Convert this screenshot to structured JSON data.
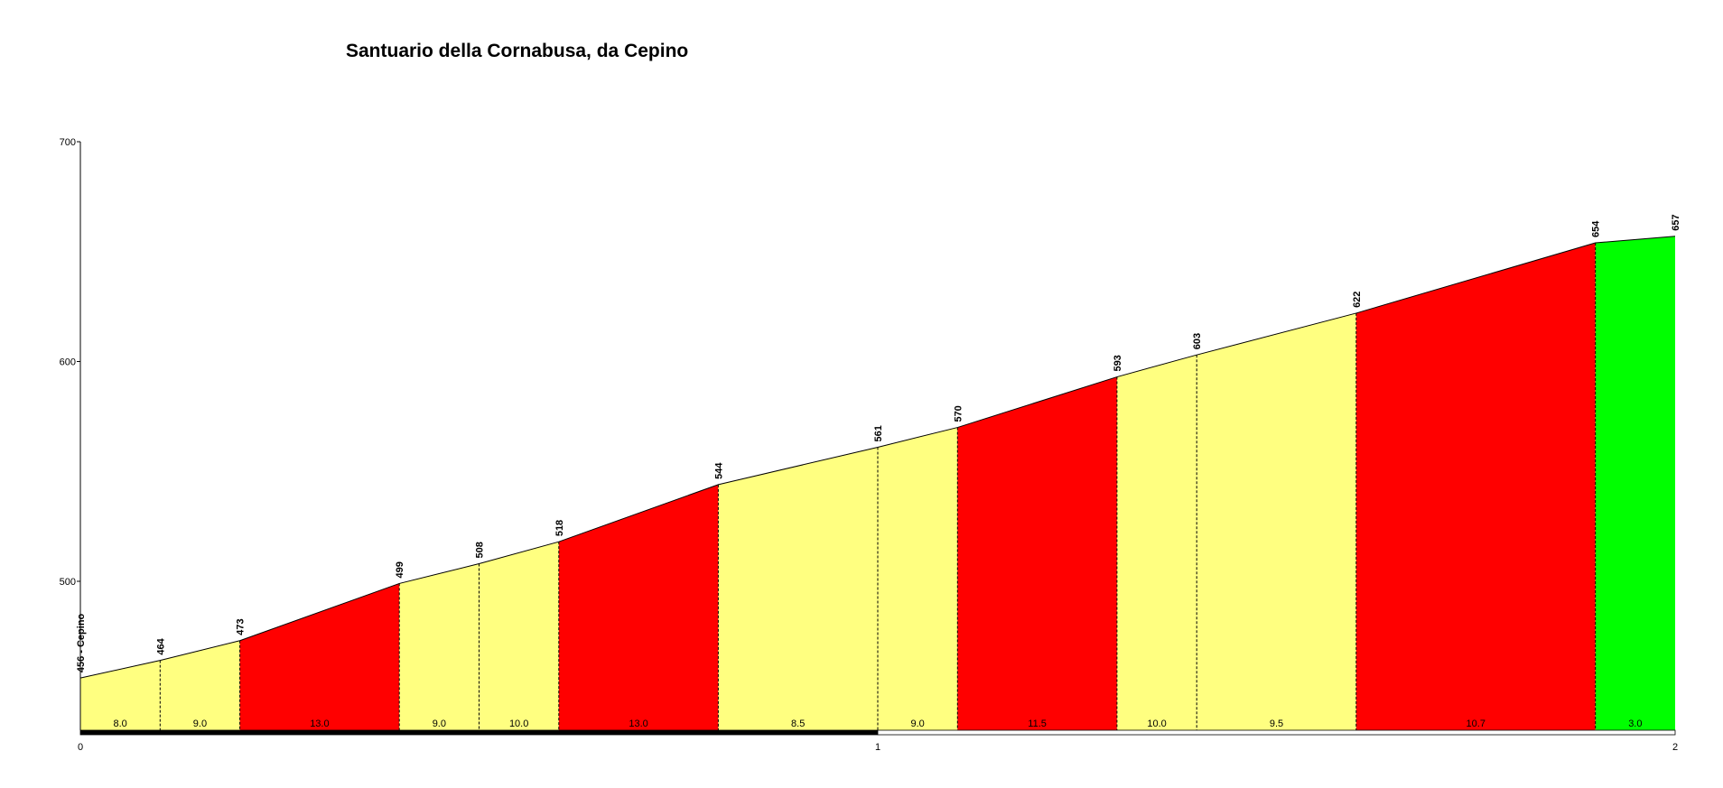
{
  "chart_data": {
    "type": "area",
    "title": "Santuario della Cornabusa, da Cepino",
    "xlabel": "",
    "ylabel": "",
    "xlim": [
      0,
      2
    ],
    "ylim": [
      433,
      700
    ],
    "y_ticks": [
      500,
      600,
      700
    ],
    "x_ticks": [
      0,
      1,
      2
    ],
    "grid": false,
    "colors": {
      "red": "#ff0000",
      "yellow": "#ffff80",
      "green": "#00ff00"
    },
    "points": [
      {
        "km": 0.0,
        "elev": 456,
        "label": "456 - Cepino"
      },
      {
        "km": 0.1,
        "elev": 464,
        "label": "464"
      },
      {
        "km": 0.2,
        "elev": 473,
        "label": "473"
      },
      {
        "km": 0.4,
        "elev": 499,
        "label": "499"
      },
      {
        "km": 0.5,
        "elev": 508,
        "label": "508"
      },
      {
        "km": 0.6,
        "elev": 518,
        "label": "518"
      },
      {
        "km": 0.8,
        "elev": 544,
        "label": "544"
      },
      {
        "km": 1.0,
        "elev": 561,
        "label": "561"
      },
      {
        "km": 1.1,
        "elev": 570,
        "label": "570"
      },
      {
        "km": 1.3,
        "elev": 593,
        "label": "593"
      },
      {
        "km": 1.4,
        "elev": 603,
        "label": "603"
      },
      {
        "km": 1.6,
        "elev": 622,
        "label": "622"
      },
      {
        "km": 1.9,
        "elev": 654,
        "label": "654"
      },
      {
        "km": 2.0,
        "elev": 657,
        "label": "657"
      }
    ],
    "segments": [
      {
        "grade": "8.0",
        "color": "yellow"
      },
      {
        "grade": "9.0",
        "color": "yellow"
      },
      {
        "grade": "13.0",
        "color": "red"
      },
      {
        "grade": "9.0",
        "color": "yellow"
      },
      {
        "grade": "10.0",
        "color": "yellow"
      },
      {
        "grade": "13.0",
        "color": "red"
      },
      {
        "grade": "8.5",
        "color": "yellow"
      },
      {
        "grade": "9.0",
        "color": "yellow"
      },
      {
        "grade": "11.5",
        "color": "red"
      },
      {
        "grade": "10.0",
        "color": "yellow"
      },
      {
        "grade": "9.5",
        "color": "yellow"
      },
      {
        "grade": "10.7",
        "color": "red"
      },
      {
        "grade": "3.0",
        "color": "green"
      }
    ]
  }
}
